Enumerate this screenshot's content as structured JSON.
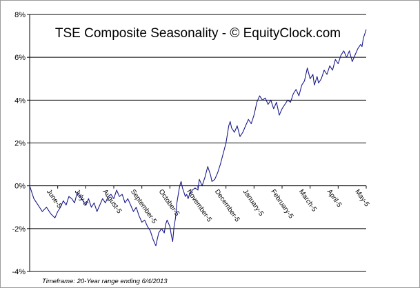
{
  "chart_data": {
    "type": "line",
    "title": "TSE Composite Seasonality - © EquityClock.com",
    "footnote": "Timeframe: 20-Year range ending 6/4/2013",
    "xlabel": "",
    "ylabel": "",
    "ylim": [
      -4,
      8
    ],
    "yticks": [
      -4,
      -2,
      0,
      2,
      4,
      6,
      8
    ],
    "ytick_format": "percent",
    "grid": "horizontal",
    "legend": "none",
    "line_color": "#1a1a8c",
    "categories": [
      "June-5",
      "July-5",
      "August-5",
      "September-5",
      "October-5",
      "November-5",
      "December-5",
      "January-5",
      "February-5",
      "March-5",
      "April-5",
      "May-5"
    ],
    "x_range": [
      0,
      12
    ],
    "category_positions": [
      0.6,
      1.6,
      2.6,
      3.6,
      4.6,
      5.6,
      6.6,
      7.6,
      8.6,
      9.6,
      10.6,
      11.6
    ],
    "series": [
      {
        "points": [
          [
            0.0,
            0.0
          ],
          [
            0.15,
            -0.6
          ],
          [
            0.3,
            -0.9
          ],
          [
            0.45,
            -1.2
          ],
          [
            0.6,
            -1.0
          ],
          [
            0.75,
            -1.3
          ],
          [
            0.9,
            -1.5
          ],
          [
            1.0,
            -1.2
          ],
          [
            1.1,
            -1.0
          ],
          [
            1.2,
            -0.7
          ],
          [
            1.3,
            -0.9
          ],
          [
            1.4,
            -0.5
          ],
          [
            1.5,
            -0.6
          ],
          [
            1.6,
            -0.8
          ],
          [
            1.7,
            -0.3
          ],
          [
            1.8,
            -0.5
          ],
          [
            1.9,
            -0.7
          ],
          [
            2.0,
            -0.9
          ],
          [
            2.1,
            -0.6
          ],
          [
            2.2,
            -1.0
          ],
          [
            2.3,
            -0.8
          ],
          [
            2.4,
            -1.2
          ],
          [
            2.5,
            -0.9
          ],
          [
            2.6,
            -0.6
          ],
          [
            2.7,
            -0.8
          ],
          [
            2.8,
            -0.5
          ],
          [
            2.9,
            -0.4
          ],
          [
            3.0,
            -0.6
          ],
          [
            3.1,
            -0.2
          ],
          [
            3.2,
            -0.5
          ],
          [
            3.3,
            -0.4
          ],
          [
            3.4,
            -0.8
          ],
          [
            3.5,
            -0.6
          ],
          [
            3.6,
            -0.9
          ],
          [
            3.7,
            -1.2
          ],
          [
            3.8,
            -1.0
          ],
          [
            3.9,
            -1.4
          ],
          [
            4.0,
            -1.7
          ],
          [
            4.1,
            -1.6
          ],
          [
            4.2,
            -1.9
          ],
          [
            4.3,
            -2.1
          ],
          [
            4.4,
            -2.5
          ],
          [
            4.5,
            -2.8
          ],
          [
            4.55,
            -2.5
          ],
          [
            4.6,
            -2.2
          ],
          [
            4.7,
            -2.0
          ],
          [
            4.8,
            -2.2
          ],
          [
            4.85,
            -1.8
          ],
          [
            4.9,
            -1.6
          ],
          [
            5.0,
            -1.9
          ],
          [
            5.05,
            -2.3
          ],
          [
            5.1,
            -2.6
          ],
          [
            5.15,
            -1.9
          ],
          [
            5.2,
            -1.5
          ],
          [
            5.25,
            -0.8
          ],
          [
            5.3,
            -0.4
          ],
          [
            5.35,
            0.0
          ],
          [
            5.4,
            0.2
          ],
          [
            5.45,
            -0.1
          ],
          [
            5.5,
            -0.3
          ],
          [
            5.55,
            -0.5
          ],
          [
            5.6,
            -0.4
          ],
          [
            5.65,
            -0.6
          ],
          [
            5.7,
            -0.4
          ],
          [
            5.8,
            -0.2
          ],
          [
            5.9,
            -0.1
          ],
          [
            6.0,
            -0.2
          ],
          [
            6.05,
            0.3
          ],
          [
            6.15,
            0.0
          ],
          [
            6.25,
            0.4
          ],
          [
            6.35,
            0.9
          ],
          [
            6.45,
            0.5
          ],
          [
            6.5,
            0.2
          ],
          [
            6.6,
            0.3
          ],
          [
            6.7,
            0.6
          ],
          [
            6.8,
            1.0
          ],
          [
            6.9,
            1.5
          ],
          [
            7.0,
            2.0
          ],
          [
            7.05,
            2.4
          ],
          [
            7.1,
            2.8
          ],
          [
            7.15,
            3.0
          ],
          [
            7.2,
            2.7
          ],
          [
            7.3,
            2.5
          ],
          [
            7.4,
            2.8
          ],
          [
            7.5,
            2.3
          ],
          [
            7.6,
            2.5
          ],
          [
            7.7,
            2.8
          ],
          [
            7.8,
            3.1
          ],
          [
            7.9,
            2.9
          ],
          [
            8.0,
            3.3
          ],
          [
            8.05,
            3.6
          ],
          [
            8.1,
            3.9
          ],
          [
            8.2,
            4.2
          ],
          [
            8.3,
            4.0
          ],
          [
            8.4,
            4.1
          ],
          [
            8.5,
            3.8
          ],
          [
            8.6,
            4.0
          ],
          [
            8.7,
            3.6
          ],
          [
            8.8,
            3.9
          ],
          [
            8.9,
            3.3
          ],
          [
            9.0,
            3.6
          ],
          [
            9.1,
            3.8
          ],
          [
            9.2,
            4.0
          ],
          [
            9.3,
            3.9
          ],
          [
            9.4,
            4.3
          ],
          [
            9.5,
            4.5
          ],
          [
            9.6,
            4.2
          ],
          [
            9.7,
            4.7
          ],
          [
            9.8,
            4.9
          ],
          [
            9.9,
            5.5
          ],
          [
            10.0,
            5.0
          ],
          [
            10.1,
            5.2
          ],
          [
            10.15,
            4.7
          ],
          [
            10.25,
            5.1
          ],
          [
            10.3,
            4.8
          ],
          [
            10.4,
            5.0
          ],
          [
            10.5,
            5.4
          ],
          [
            10.6,
            5.2
          ],
          [
            10.7,
            5.6
          ],
          [
            10.8,
            5.4
          ],
          [
            10.9,
            5.9
          ],
          [
            11.0,
            5.7
          ],
          [
            11.1,
            6.1
          ],
          [
            11.2,
            6.3
          ],
          [
            11.3,
            6.0
          ],
          [
            11.4,
            6.3
          ],
          [
            11.5,
            5.8
          ],
          [
            11.6,
            6.1
          ],
          [
            11.7,
            6.4
          ],
          [
            11.8,
            6.6
          ],
          [
            11.85,
            6.5
          ],
          [
            11.9,
            6.9
          ],
          [
            11.95,
            7.1
          ],
          [
            12.0,
            7.3
          ]
        ]
      }
    ]
  }
}
